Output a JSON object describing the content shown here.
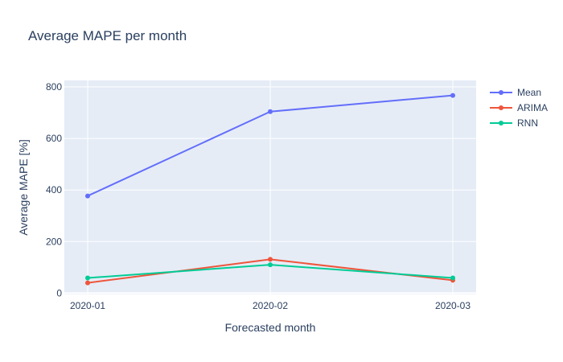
{
  "chart_data": {
    "type": "line",
    "title": "Average MAPE per month",
    "xlabel": "Forecasted month",
    "ylabel": "Average MAPE [%]",
    "categories": [
      "2020-01",
      "2020-02",
      "2020-03"
    ],
    "yticks": [
      0,
      200,
      400,
      600,
      800
    ],
    "ylim": [
      -5,
      825
    ],
    "grid": true,
    "legend_position": "top-right",
    "series": [
      {
        "name": "Mean",
        "color": "#636efa",
        "values": [
          377,
          704,
          767
        ]
      },
      {
        "name": "ARIMA",
        "color": "#ef553b",
        "values": [
          40,
          131,
          50
        ]
      },
      {
        "name": "RNN",
        "color": "#00cc96",
        "values": [
          59,
          110,
          59
        ]
      }
    ]
  }
}
